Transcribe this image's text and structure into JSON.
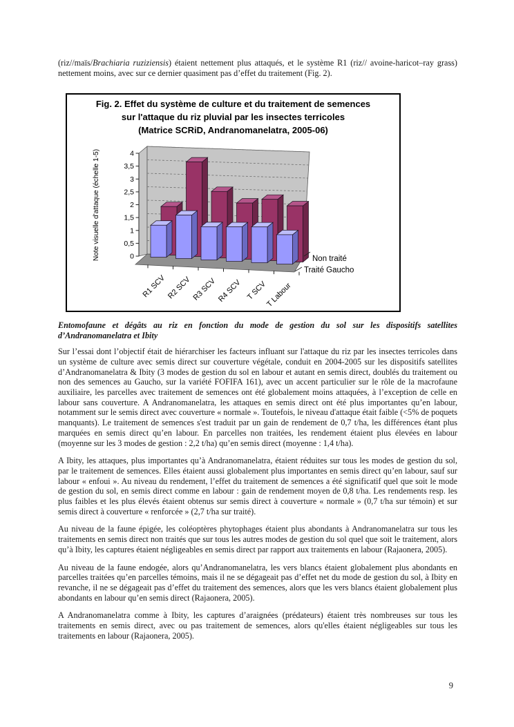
{
  "page": {
    "number": "9"
  },
  "intro": {
    "pre": "(riz//maïs/",
    "italic": "Brachiaria ruziziensis",
    "post": ") étaient nettement plus attaqués, et le système R1 (riz// avoine-haricot–ray grass) nettement moins, avec sur ce dernier quasiment pas d’effet du traitement (Fig. 2)."
  },
  "figure": {
    "title_line1": "Fig. 2. Effet du système de culture et du traitement de semences",
    "title_line2": "sur l'attaque du riz pluvial par les insectes terricoles",
    "title_line3": "(Matrice SCRiD, Andranomanelatra, 2005-06)"
  },
  "chart_data": {
    "type": "bar",
    "subtype": "3d-column",
    "title": "Fig. 2. Effet du système de culture et du traitement de semences sur l'attaque du riz pluvial par les insectes terricoles (Matrice SCRiD, Andranomanelatra, 2005-06)",
    "categories": [
      "R1 SCV",
      "R2 SCV",
      "R3 SCV",
      "R4 SCV",
      "T SCV",
      "T Labour"
    ],
    "series": [
      {
        "name": "Non traité",
        "color": "#993366",
        "color_side": "#6E2549",
        "color_top": "#B5558A",
        "values": [
          1.9,
          3.7,
          2.6,
          2.2,
          2.4,
          2.2
        ]
      },
      {
        "name": "Traité Gaucho",
        "color": "#9999FF",
        "color_side": "#6A6AC2",
        "color_top": "#BDBDFA",
        "values": [
          1.25,
          1.7,
          1.3,
          1.35,
          1.4,
          1.15
        ]
      }
    ],
    "ylabel": "Note visuelle d'attaque (échelle 1-5)",
    "xlabel": "",
    "ylim": [
      0,
      4
    ],
    "ytick_step": 0.5,
    "ytick_labels": [
      "0",
      "0,5",
      "1",
      "1,5",
      "2",
      "2,5",
      "3",
      "3,5",
      "4"
    ],
    "grid": true,
    "legend_position": "right-depth-axis",
    "wall_color": "#C6C6C6",
    "floor_color": "#909090"
  },
  "sections": {
    "heading": "Entomofaune et dégâts au riz en fonction du mode de gestion du sol sur les dispositifs satellites d’Andranomanelatra et Ibity",
    "paragraphs": [
      "Sur l’essai dont l’objectif était de hiérarchiser les facteurs influant sur l'attaque du riz par les insectes terricoles dans un système de culture avec semis direct sur couverture végétale, conduit en 2004-2005 sur les dispositifs satellites d’Andranomanelatra & Ibity (3 modes de gestion du sol en labour et autant en semis direct, doublés du traitement ou non des semences au Gaucho, sur la variété FOFIFA 161), avec un accent particulier sur le rôle de la macrofaune auxiliaire, les parcelles avec traitement de semences ont été globalement moins attaquées, à l’exception de celle en labour sans couverture. A Andranomanelatra, les attaques en semis direct ont été plus importantes qu’en labour, notamment sur le semis direct avec couverture « normale ». Toutefois, le niveau d'attaque était faible (<5% de poquets manquants). Le traitement de semences s'est traduit par un gain de rendement de 0,7 t/ha, les différences étant plus marquées en semis direct qu’en labour. En parcelles non traitées, les rendement étaient plus élevées en labour (moyenne sur les 3 modes de gestion : 2,2 t/ha) qu’en semis direct (moyenne : 1,4 t/ha).",
      "A Ibity, les attaques, plus importantes qu’à Andranomanelatra, étaient réduites sur tous les modes de gestion du sol, par le traitement de semences. Elles étaient aussi globalement plus importantes en semis direct qu’en labour, sauf sur labour « enfoui ». Au niveau du rendement, l’effet du traitement de semences a été significatif quel que soit le mode de gestion du sol, en semis direct comme en labour : gain de rendement moyen de 0,8 t/ha. Les rendements resp. les plus faibles et les plus élevés étaient obtenus sur semis direct à couverture « normale » (0,7 t/ha sur témoin) et sur semis direct à couverture « renforcée » (2,7 t/ha sur traité).",
      "Au niveau de la faune épigée, les coléoptères phytophages étaient plus abondants à Andranomanelatra sur tous les traitements en semis direct non traités que sur tous les autres modes de gestion du sol quel que soit le traitement, alors qu’à Ibity, les captures étaient négligeables en semis direct par rapport aux traitements en labour (Rajaonera, 2005).",
      "Au niveau de la faune endogée, alors qu’Andranomanelatra, les vers blancs étaient globalement plus abondants en parcelles traitées qu’en parcelles témoins, mais il ne se dégageait pas d’effet net du mode de gestion du sol, à Ibity en revanche, il ne se dégageait pas d’effet du traitement des semences, alors que les vers blancs étaient globalement plus abondants en labour qu’en semis direct (Rajaonera, 2005).",
      "A Andranomanelatra comme à Ibity, les captures d’araignées (prédateurs) étaient très nombreuses sur tous les traitements en semis direct, avec ou pas traitement de semences, alors qu'elles étaient négligeables sur tous les traitements en labour (Rajaonera, 2005)."
    ]
  }
}
